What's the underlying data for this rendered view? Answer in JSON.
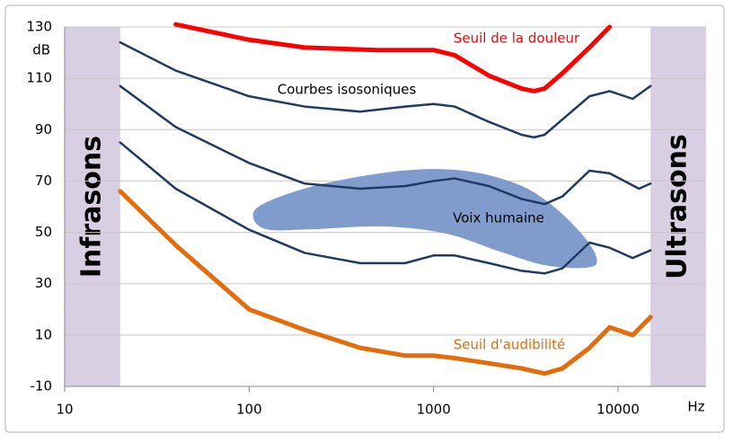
{
  "chart_data": {
    "type": "line",
    "x_scale": "log",
    "xlim": [
      10,
      30000
    ],
    "xticks": [
      10,
      100,
      1000,
      10000
    ],
    "ylim": [
      -10,
      130
    ],
    "yticks": [
      -10,
      10,
      30,
      50,
      70,
      90,
      110,
      130
    ],
    "y_label": "dB",
    "x_label": "Hz",
    "grid": true,
    "bands": [
      {
        "label": "Infrasons",
        "x": [
          10,
          20
        ],
        "color": "#d8cfe3"
      },
      {
        "label": "Ultrasons",
        "x": [
          15000,
          30000
        ],
        "color": "#d8cfe3"
      }
    ],
    "isosonic_label": "Courbes isosoniques",
    "voice": {
      "label": "Voix humaine",
      "color": "#7f9ccd",
      "x": [
        105,
        124,
        244,
        668,
        1462,
        2866,
        4487,
        6640,
        7690,
        6640,
        4010,
        2290,
        1170,
        534,
        218,
        124
      ],
      "y": [
        56.5,
        61.7,
        68.7,
        74,
        74,
        68.7,
        60,
        47.7,
        39,
        36.2,
        37.2,
        42.5,
        49.5,
        52.3,
        51.2,
        51.2
      ]
    },
    "series": [
      {
        "name": "Seuil de la douleur",
        "color": "#ff0000",
        "x": [
          40,
          100,
          200,
          500,
          1000,
          1300,
          2000,
          3000,
          3500,
          4000,
          5000,
          7000,
          9000
        ],
        "values": [
          131,
          125,
          122,
          121,
          121,
          119,
          111,
          106,
          105,
          106,
          112,
          122,
          130
        ]
      },
      {
        "color": "#1f3b64",
        "x": [
          20,
          40,
          100,
          200,
          400,
          700,
          1000,
          1300,
          2000,
          3000,
          3500,
          4000,
          5000,
          7000,
          9000,
          12000,
          15000
        ],
        "values": [
          124,
          113,
          103,
          99,
          97,
          99,
          100,
          99,
          93,
          88,
          87,
          88,
          94,
          103,
          105,
          102,
          107
        ]
      },
      {
        "color": "#1f3b64",
        "x": [
          20,
          40,
          100,
          200,
          400,
          700,
          1000,
          1300,
          2000,
          3000,
          4000,
          5000,
          7000,
          9000,
          13000,
          15000
        ],
        "values": [
          107,
          91,
          77,
          69,
          67,
          68,
          70,
          71,
          68,
          63,
          61,
          64,
          74,
          73,
          67,
          69
        ]
      },
      {
        "color": "#1f3b64",
        "x": [
          20,
          40,
          100,
          200,
          400,
          700,
          1000,
          1300,
          2000,
          3000,
          4000,
          5000,
          7000,
          9000,
          12000,
          15000
        ],
        "values": [
          85,
          67,
          51,
          42,
          38,
          38,
          41,
          41,
          38,
          35,
          34,
          36,
          46,
          44,
          40,
          43
        ]
      },
      {
        "name": "Seuil d'audibilité",
        "color": "#e46c0a",
        "x": [
          20,
          40,
          100,
          200,
          400,
          700,
          1000,
          1300,
          2000,
          3000,
          4000,
          5000,
          7000,
          9000,
          12000,
          15000
        ],
        "values": [
          66,
          45,
          20,
          12,
          5,
          2,
          2,
          1,
          -1,
          -3,
          -5,
          -3,
          5,
          13,
          10,
          17
        ]
      }
    ]
  }
}
